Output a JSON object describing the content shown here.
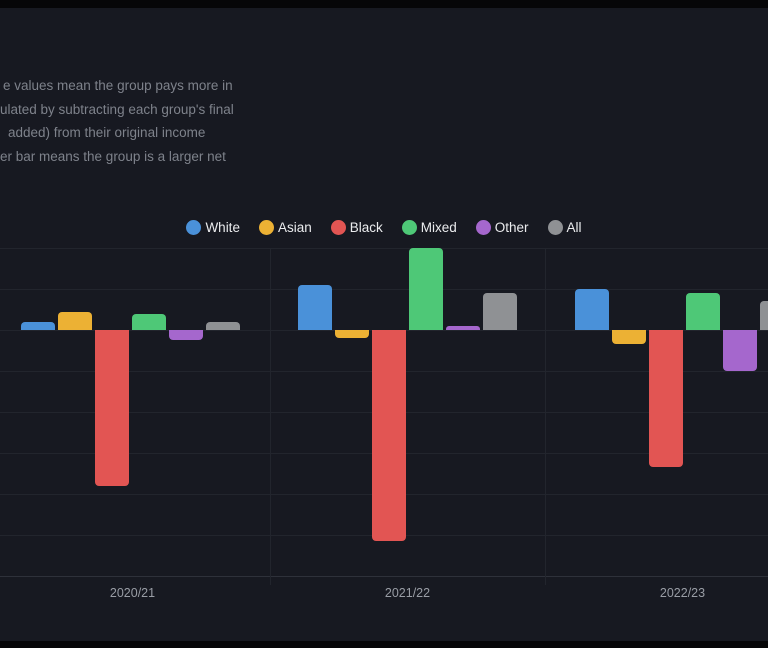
{
  "description": {
    "lines": [
      "e values mean the group pays more in",
      "ulated by subtracting each group's final",
      "added) from their original income",
      "er bar means the group is a larger net"
    ]
  },
  "theme": {
    "background": "#171921",
    "edge_strip": "#060608",
    "gridline": "#22252d",
    "axis_line": "#2e313a",
    "tick_label": "#999da5",
    "legend_text": "#ebecee",
    "description_text": "#7e828b"
  },
  "chart_data": {
    "type": "bar",
    "categories": [
      "2020/21",
      "2021/22",
      "2022/23"
    ],
    "series": [
      {
        "name": "White",
        "color": "#4a91d9",
        "values": [
          0.2,
          1.1,
          1.0
        ]
      },
      {
        "name": "Asian",
        "color": "#ecb134",
        "values": [
          0.45,
          -0.2,
          -0.35
        ]
      },
      {
        "name": "Black",
        "color": "#e25553",
        "values": [
          -3.8,
          -5.15,
          -3.35
        ]
      },
      {
        "name": "Mixed",
        "color": "#4ec877",
        "values": [
          0.4,
          2.0,
          0.9
        ]
      },
      {
        "name": "Other",
        "color": "#a567cd",
        "values": [
          -0.25,
          0.1,
          -1.0
        ]
      },
      {
        "name": "All",
        "color": "#8f9194",
        "values": [
          0.2,
          0.9,
          0.7
        ]
      }
    ],
    "title": "",
    "xlabel": "",
    "ylabel": "",
    "ylim": [
      -6,
      2
    ],
    "grid": true,
    "legend_position": "top-center",
    "y_axis_tick_labels_visible": false
  }
}
